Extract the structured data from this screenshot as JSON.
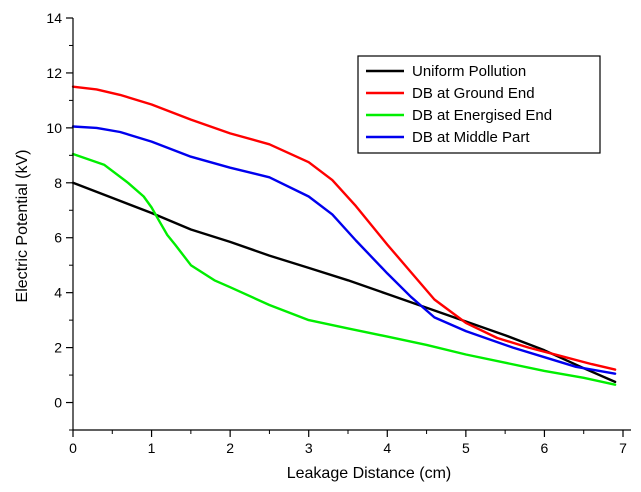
{
  "chart_data": {
    "type": "line",
    "title": "",
    "xlabel": "Leakage Distance (cm)",
    "ylabel": "Electric Potential (kV)",
    "xlim": [
      0,
      7
    ],
    "ylim": [
      -1,
      14
    ],
    "xticks": [
      0,
      1,
      2,
      3,
      4,
      5,
      6,
      7
    ],
    "yticks": [
      0,
      2,
      4,
      6,
      8,
      10,
      12,
      14
    ],
    "grid": false,
    "legend_position": "top-right",
    "series": [
      {
        "name": "Uniform Pollution",
        "color": "#000000",
        "x": [
          0,
          0.5,
          1,
          1.5,
          2,
          2.5,
          3,
          3.5,
          4,
          4.5,
          5,
          5.5,
          6,
          6.5,
          6.9
        ],
        "y": [
          8.0,
          7.45,
          6.9,
          6.3,
          5.85,
          5.35,
          4.9,
          4.45,
          3.95,
          3.45,
          2.95,
          2.45,
          1.9,
          1.25,
          0.75
        ]
      },
      {
        "name": "DB at Ground End",
        "color": "#ff0000",
        "x": [
          0,
          0.3,
          0.6,
          1,
          1.5,
          2,
          2.5,
          3,
          3.3,
          3.6,
          4,
          4.3,
          4.6,
          5,
          5.4,
          5.8,
          6.2,
          6.6,
          6.9
        ],
        "y": [
          11.5,
          11.4,
          11.2,
          10.85,
          10.3,
          9.8,
          9.4,
          8.75,
          8.1,
          7.15,
          5.75,
          4.75,
          3.75,
          2.9,
          2.35,
          2.0,
          1.7,
          1.4,
          1.2
        ]
      },
      {
        "name": "DB at Energised End",
        "color": "#00ee00",
        "x": [
          0,
          0.4,
          0.7,
          0.9,
          1.0,
          1.1,
          1.2,
          1.3,
          1.5,
          1.8,
          2.0,
          2.5,
          3.0,
          3.5,
          4.0,
          4.5,
          5.0,
          5.5,
          6.0,
          6.5,
          6.9
        ],
        "y": [
          9.05,
          8.65,
          8.0,
          7.5,
          7.1,
          6.6,
          6.1,
          5.75,
          5.0,
          4.45,
          4.2,
          3.55,
          3.0,
          2.7,
          2.4,
          2.1,
          1.75,
          1.45,
          1.15,
          0.9,
          0.65
        ]
      },
      {
        "name": "DB at Middle Part",
        "color": "#0000ee",
        "x": [
          0,
          0.3,
          0.6,
          1,
          1.5,
          2,
          2.5,
          3,
          3.3,
          3.6,
          4,
          4.3,
          4.6,
          5,
          5.3,
          5.6,
          6,
          6.4,
          6.9
        ],
        "y": [
          10.05,
          10.0,
          9.85,
          9.5,
          8.95,
          8.55,
          8.2,
          7.5,
          6.85,
          5.9,
          4.7,
          3.85,
          3.1,
          2.6,
          2.3,
          2.0,
          1.65,
          1.3,
          1.05
        ]
      }
    ]
  }
}
